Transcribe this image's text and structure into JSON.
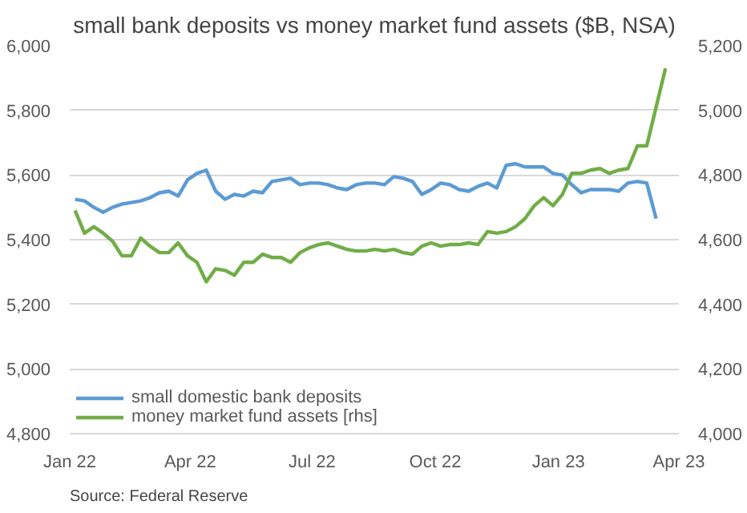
{
  "chart_data": {
    "type": "line",
    "title": "small bank deposits vs money market fund assets ($B, NSA)",
    "x": [
      "2022-01-05",
      "2022-01-12",
      "2022-01-19",
      "2022-01-26",
      "2022-02-02",
      "2022-02-09",
      "2022-02-16",
      "2022-02-23",
      "2022-03-02",
      "2022-03-09",
      "2022-03-16",
      "2022-03-23",
      "2022-03-30",
      "2022-04-06",
      "2022-04-13",
      "2022-04-20",
      "2022-04-27",
      "2022-05-04",
      "2022-05-11",
      "2022-05-18",
      "2022-05-25",
      "2022-06-01",
      "2022-06-08",
      "2022-06-15",
      "2022-06-22",
      "2022-06-29",
      "2022-07-06",
      "2022-07-13",
      "2022-07-20",
      "2022-07-27",
      "2022-08-03",
      "2022-08-10",
      "2022-08-17",
      "2022-08-24",
      "2022-08-31",
      "2022-09-07",
      "2022-09-14",
      "2022-09-21",
      "2022-09-28",
      "2022-10-05",
      "2022-10-12",
      "2022-10-19",
      "2022-10-26",
      "2022-11-02",
      "2022-11-09",
      "2022-11-16",
      "2022-11-23",
      "2022-11-30",
      "2022-12-07",
      "2022-12-14",
      "2022-12-21",
      "2022-12-28",
      "2023-01-04",
      "2023-01-11",
      "2023-01-18",
      "2023-01-25",
      "2023-02-01",
      "2023-02-08",
      "2023-02-15",
      "2023-02-22",
      "2023-03-01",
      "2023-03-08",
      "2023-03-15",
      "2023-03-22"
    ],
    "series": [
      {
        "name": "small domestic bank deposits",
        "color": "#5b9bd5",
        "values": [
          5525,
          5520,
          5500,
          5485,
          5500,
          5510,
          5515,
          5520,
          5530,
          5545,
          5550,
          5535,
          5585,
          5605,
          5615,
          5550,
          5525,
          5540,
          5535,
          5550,
          5545,
          5580,
          5585,
          5590,
          5570,
          5575,
          5575,
          5570,
          5560,
          5555,
          5570,
          5575,
          5575,
          5570,
          5595,
          5590,
          5580,
          5540,
          5555,
          5575,
          5570,
          5555,
          5550,
          5565,
          5575,
          5560,
          5630,
          5635,
          5625,
          5625,
          5625,
          5605,
          5600,
          5570,
          5545,
          5555,
          5555,
          5555,
          5550,
          5575,
          5580,
          5575,
          5465,
          null
        ]
      },
      {
        "name": "money market fund assets [rhs]",
        "color": "#70ad47",
        "axis": "y2",
        "values": [
          4690,
          4620,
          4640,
          4620,
          4595,
          4550,
          4550,
          4605,
          4580,
          4560,
          4560,
          4590,
          4550,
          4530,
          4470,
          4510,
          4505,
          4490,
          4530,
          4530,
          4555,
          4545,
          4545,
          4530,
          4560,
          4575,
          4585,
          4590,
          4580,
          4570,
          4565,
          4565,
          4570,
          4565,
          4570,
          4560,
          4555,
          4580,
          4590,
          4580,
          4585,
          4585,
          4590,
          4585,
          4625,
          4620,
          4625,
          4640,
          4665,
          4705,
          4730,
          4705,
          4740,
          4805,
          4805,
          4815,
          4820,
          4805,
          4815,
          4820,
          4890,
          4890,
          5010,
          5130
        ]
      }
    ],
    "xlim": [
      "2022-01-01",
      "2023-04-01"
    ],
    "xticks": [
      {
        "value": "2022-01-01",
        "label": "Jan 22"
      },
      {
        "value": "2022-04-01",
        "label": "Apr 22"
      },
      {
        "value": "2022-07-01",
        "label": "Jul 22"
      },
      {
        "value": "2022-10-01",
        "label": "Oct 22"
      },
      {
        "value": "2023-01-01",
        "label": "Jan 23"
      },
      {
        "value": "2023-04-01",
        "label": "Apr 23"
      }
    ],
    "ylim": [
      4800,
      6000
    ],
    "yticks": [
      {
        "value": 4800,
        "label": "4,800"
      },
      {
        "value": 5000,
        "label": "5,000"
      },
      {
        "value": 5200,
        "label": "5,200"
      },
      {
        "value": 5400,
        "label": "5,400"
      },
      {
        "value": 5600,
        "label": "5,600"
      },
      {
        "value": 5800,
        "label": "5,800"
      },
      {
        "value": 6000,
        "label": "6,000"
      }
    ],
    "y2lim": [
      4000,
      5200
    ],
    "y2ticks": [
      {
        "value": 4000,
        "label": "4,000"
      },
      {
        "value": 4200,
        "label": "4,200"
      },
      {
        "value": 4400,
        "label": "4,400"
      },
      {
        "value": 4600,
        "label": "4,600"
      },
      {
        "value": 4800,
        "label": "4,800"
      },
      {
        "value": 5000,
        "label": "5,000"
      },
      {
        "value": 5200,
        "label": "5,200"
      }
    ],
    "grid": "y",
    "legend": "bottom left",
    "marker": "none",
    "line_style": "solid",
    "annotations": [
      "Source: Federal Reserve"
    ]
  }
}
